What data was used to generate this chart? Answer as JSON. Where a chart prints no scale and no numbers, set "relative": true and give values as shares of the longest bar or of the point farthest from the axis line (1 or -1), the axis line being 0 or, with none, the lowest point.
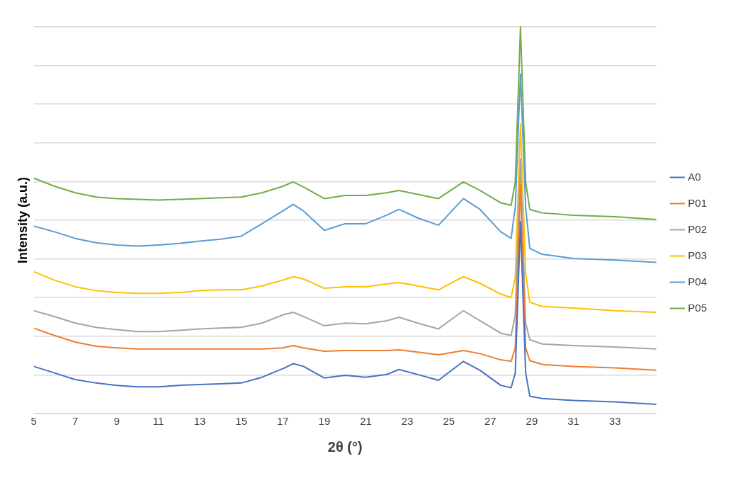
{
  "chart_data": {
    "type": "line",
    "xlabel": "2θ (°)",
    "ylabel": "Intensity (a.u.)",
    "relative": true,
    "xlim": [
      5,
      35
    ],
    "xticks": [
      5,
      7,
      9,
      11,
      13,
      15,
      17,
      19,
      21,
      23,
      25,
      27,
      29,
      31,
      33
    ],
    "x": [
      5,
      6,
      7,
      8,
      9,
      10,
      11,
      12,
      13,
      14,
      15,
      16,
      17,
      17.5,
      18,
      19,
      20,
      21,
      22,
      22.6,
      23.5,
      24.5,
      25.7,
      26.5,
      27.5,
      28.0,
      28.2,
      28.45,
      28.7,
      28.9,
      29.5,
      31,
      33,
      35
    ],
    "grid": "y",
    "legend": "right",
    "marker": "none",
    "line_style": "solid",
    "series": [
      {
        "name": "A0",
        "color": "#4472c4",
        "values": [
          0.122,
          0.105,
          0.088,
          0.079,
          0.073,
          0.069,
          0.069,
          0.073,
          0.075,
          0.077,
          0.079,
          0.094,
          0.116,
          0.129,
          0.122,
          0.092,
          0.099,
          0.094,
          0.101,
          0.114,
          0.101,
          0.086,
          0.135,
          0.112,
          0.073,
          0.067,
          0.105,
          0.496,
          0.105,
          0.045,
          0.039,
          0.034,
          0.03,
          0.024
        ]
      },
      {
        "name": "P01",
        "color": "#ed7d31",
        "values": [
          0.221,
          0.202,
          0.185,
          0.174,
          0.17,
          0.167,
          0.167,
          0.167,
          0.167,
          0.167,
          0.167,
          0.167,
          0.17,
          0.176,
          0.17,
          0.161,
          0.163,
          0.163,
          0.163,
          0.165,
          0.159,
          0.152,
          0.163,
          0.155,
          0.139,
          0.135,
          0.17,
          0.592,
          0.17,
          0.137,
          0.127,
          0.122,
          0.118,
          0.112
        ]
      },
      {
        "name": "P02",
        "color": "#a5a5a5",
        "values": [
          0.266,
          0.251,
          0.234,
          0.223,
          0.217,
          0.212,
          0.212,
          0.215,
          0.219,
          0.221,
          0.223,
          0.234,
          0.255,
          0.262,
          0.251,
          0.227,
          0.234,
          0.232,
          0.24,
          0.249,
          0.234,
          0.219,
          0.266,
          0.24,
          0.208,
          0.202,
          0.255,
          0.659,
          0.234,
          0.191,
          0.18,
          0.176,
          0.172,
          0.167
        ]
      },
      {
        "name": "P03",
        "color": "#ffc000",
        "values": [
          0.367,
          0.345,
          0.328,
          0.318,
          0.313,
          0.311,
          0.311,
          0.313,
          0.318,
          0.32,
          0.32,
          0.33,
          0.345,
          0.354,
          0.348,
          0.324,
          0.328,
          0.328,
          0.335,
          0.339,
          0.33,
          0.32,
          0.354,
          0.337,
          0.309,
          0.3,
          0.352,
          0.749,
          0.363,
          0.288,
          0.277,
          0.273,
          0.266,
          0.262
        ]
      },
      {
        "name": "P04",
        "color": "#5b9bd5",
        "values": [
          0.485,
          0.47,
          0.453,
          0.442,
          0.436,
          0.433,
          0.436,
          0.44,
          0.446,
          0.451,
          0.459,
          0.491,
          0.524,
          0.541,
          0.524,
          0.474,
          0.491,
          0.491,
          0.513,
          0.528,
          0.506,
          0.487,
          0.556,
          0.528,
          0.47,
          0.453,
          0.534,
          0.878,
          0.534,
          0.427,
          0.412,
          0.401,
          0.397,
          0.391
        ]
      },
      {
        "name": "P05",
        "color": "#70ad47",
        "values": [
          0.609,
          0.588,
          0.571,
          0.56,
          0.556,
          0.554,
          0.552,
          0.554,
          0.556,
          0.558,
          0.56,
          0.571,
          0.588,
          0.599,
          0.586,
          0.556,
          0.564,
          0.564,
          0.571,
          0.577,
          0.567,
          0.556,
          0.599,
          0.577,
          0.545,
          0.539,
          0.599,
          1,
          0.599,
          0.528,
          0.519,
          0.513,
          0.509,
          0.502
        ]
      }
    ]
  }
}
